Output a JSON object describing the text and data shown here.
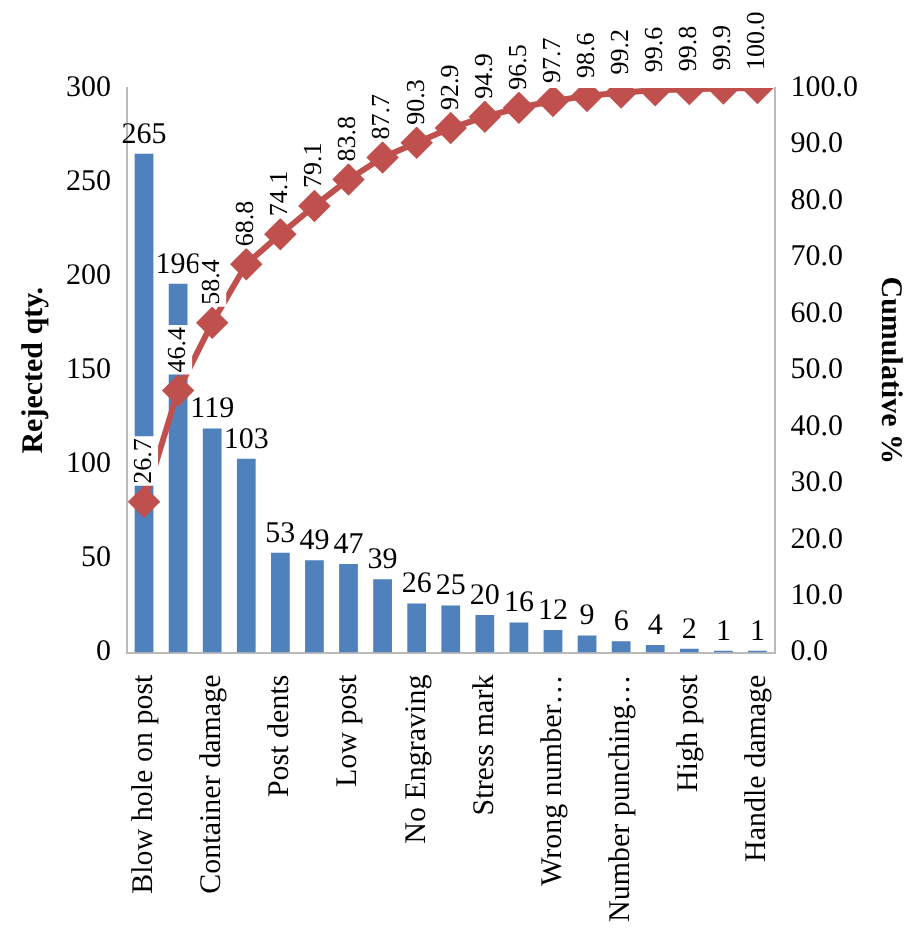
{
  "chart_data": {
    "type": "bar",
    "categories": [
      "Blow hole on post",
      null,
      "Container damage",
      null,
      "Post dents",
      null,
      "Low post",
      null,
      "No Engraving",
      null,
      "Stress mark",
      null,
      "Wrong number…",
      null,
      "Number punching…",
      null,
      "High post",
      null,
      "Handle damage"
    ],
    "ylabel": "Rejected qty.",
    "y2label": "Cumulative %",
    "ylim": [
      0,
      300
    ],
    "yticks": [
      0,
      50,
      100,
      150,
      200,
      250,
      300
    ],
    "y2lim": [
      0,
      100
    ],
    "y2ticks": [
      {
        "value": 0,
        "label": "0.0"
      },
      {
        "value": 10,
        "label": "10.0"
      },
      {
        "value": 20,
        "label": "20.0"
      },
      {
        "value": 30,
        "label": "30.0"
      },
      {
        "value": 40,
        "label": "40.0"
      },
      {
        "value": 50,
        "label": "50.0"
      },
      {
        "value": 60,
        "label": "60.0"
      },
      {
        "value": 70,
        "label": "70.0"
      },
      {
        "value": 80,
        "label": "80.0"
      },
      {
        "value": 90,
        "label": "90.0"
      },
      {
        "value": 100,
        "label": "100.0"
      }
    ],
    "series": [
      {
        "color": "#4f81bd",
        "values": [
          265,
          196,
          119,
          103,
          53,
          49,
          47,
          39,
          26,
          25,
          20,
          16,
          12,
          9,
          6,
          4,
          2,
          1,
          1
        ],
        "value_labels": [
          "265",
          "196",
          "119",
          "103",
          "53",
          "49",
          "47",
          "39",
          "26",
          "25",
          "20",
          "16",
          "12",
          "9",
          "6",
          "4",
          "2",
          "1",
          "1"
        ]
      },
      {
        "type": "line",
        "axis": "y2",
        "color": "#c0504d",
        "values": [
          26.7,
          46.4,
          58.4,
          68.8,
          74.1,
          79.1,
          83.8,
          87.7,
          90.3,
          92.9,
          94.9,
          96.5,
          97.7,
          98.6,
          99.2,
          99.6,
          99.8,
          99.9,
          100.0
        ],
        "value_labels": [
          "26.7",
          "46.4",
          "58.4",
          "68.8",
          "74.1",
          "79.1",
          "83.8",
          "87.7",
          "90.3",
          "92.9",
          "94.9",
          "96.5",
          "97.7",
          "98.6",
          "99.2",
          "99.6",
          "99.8",
          "99.9",
          "100.0"
        ]
      }
    ],
    "grid": false,
    "legend": false,
    "marker": "diamond",
    "line_style": "solid"
  }
}
